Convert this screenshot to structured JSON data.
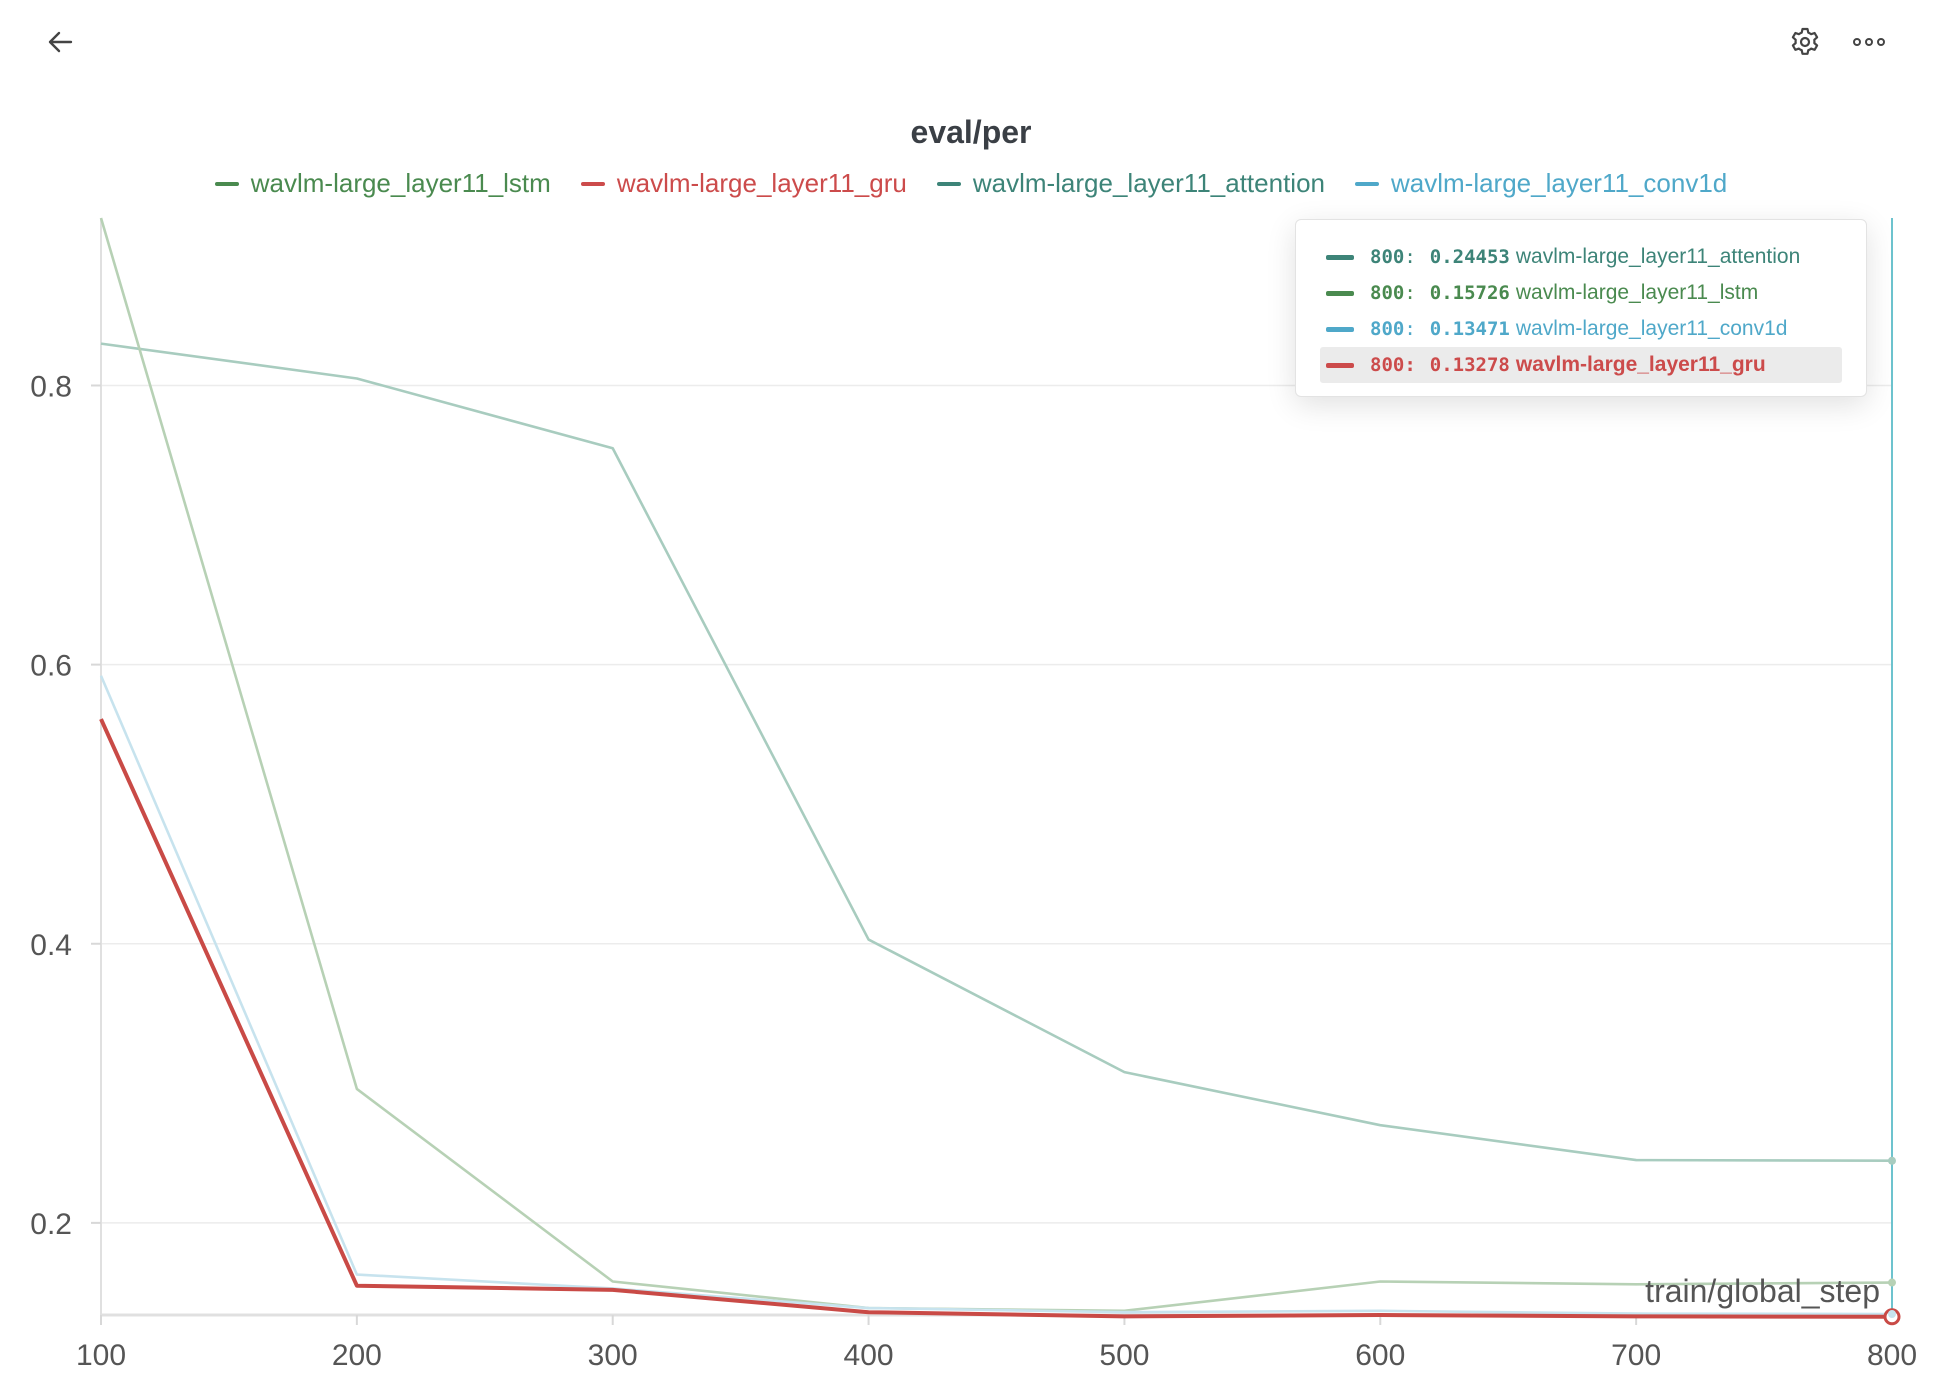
{
  "toolbar": {
    "back_icon": "arrow-left-icon",
    "settings_icon": "gear-icon",
    "more_icon": "ellipsis-icon"
  },
  "chart_data": {
    "type": "line",
    "title": "eval/per",
    "xlabel": "train/global_step",
    "ylabel": "",
    "xlim": [
      100,
      800
    ],
    "ylim": [
      0.134,
      0.92
    ],
    "xticks": [
      100,
      200,
      300,
      400,
      500,
      600,
      700,
      800
    ],
    "yticks": [
      0.2,
      0.4,
      0.6,
      0.8
    ],
    "grid": true,
    "legend_placement": "top",
    "x": [
      100,
      200,
      300,
      400,
      500,
      600,
      700,
      800
    ],
    "series": [
      {
        "name": "wavlm-large_layer11_lstm",
        "color": "#4a8a4f",
        "plot_color": "#b7d1b5",
        "values": [
          0.92,
          0.296,
          0.158,
          0.139,
          0.137,
          0.158,
          0.156,
          0.15726
        ]
      },
      {
        "name": "wavlm-large_layer11_gru",
        "color": "#cc4b4b",
        "plot_color": "#c94a46",
        "values": [
          0.561,
          0.155,
          0.152,
          0.136,
          0.133,
          0.134,
          0.133,
          0.13278
        ]
      },
      {
        "name": "wavlm-large_layer11_attention",
        "color": "#3d8478",
        "plot_color": "#a8ccbf",
        "values": [
          0.83,
          0.805,
          0.755,
          0.403,
          0.308,
          0.27,
          0.245,
          0.24453
        ]
      },
      {
        "name": "wavlm-large_layer11_conv1d",
        "color": "#4fa8c9",
        "plot_color": "#c7e3ee",
        "values": [
          0.592,
          0.163,
          0.153,
          0.139,
          0.136,
          0.137,
          0.135,
          0.13471
        ]
      }
    ],
    "hover": {
      "step": 800,
      "rows": [
        {
          "step": "800",
          "value": "0.24453",
          "name": "wavlm-large_layer11_attention",
          "color": "#3d8478"
        },
        {
          "step": "800",
          "value": "0.15726",
          "name": "wavlm-large_layer11_lstm",
          "color": "#4a8a4f"
        },
        {
          "step": "800",
          "value": "0.13471",
          "name": "wavlm-large_layer11_conv1d",
          "color": "#4fa8c9"
        },
        {
          "step": "800",
          "value": "0.13278",
          "name": "wavlm-large_layer11_gru",
          "color": "#cc4b4b",
          "highlighted": true
        }
      ]
    }
  }
}
